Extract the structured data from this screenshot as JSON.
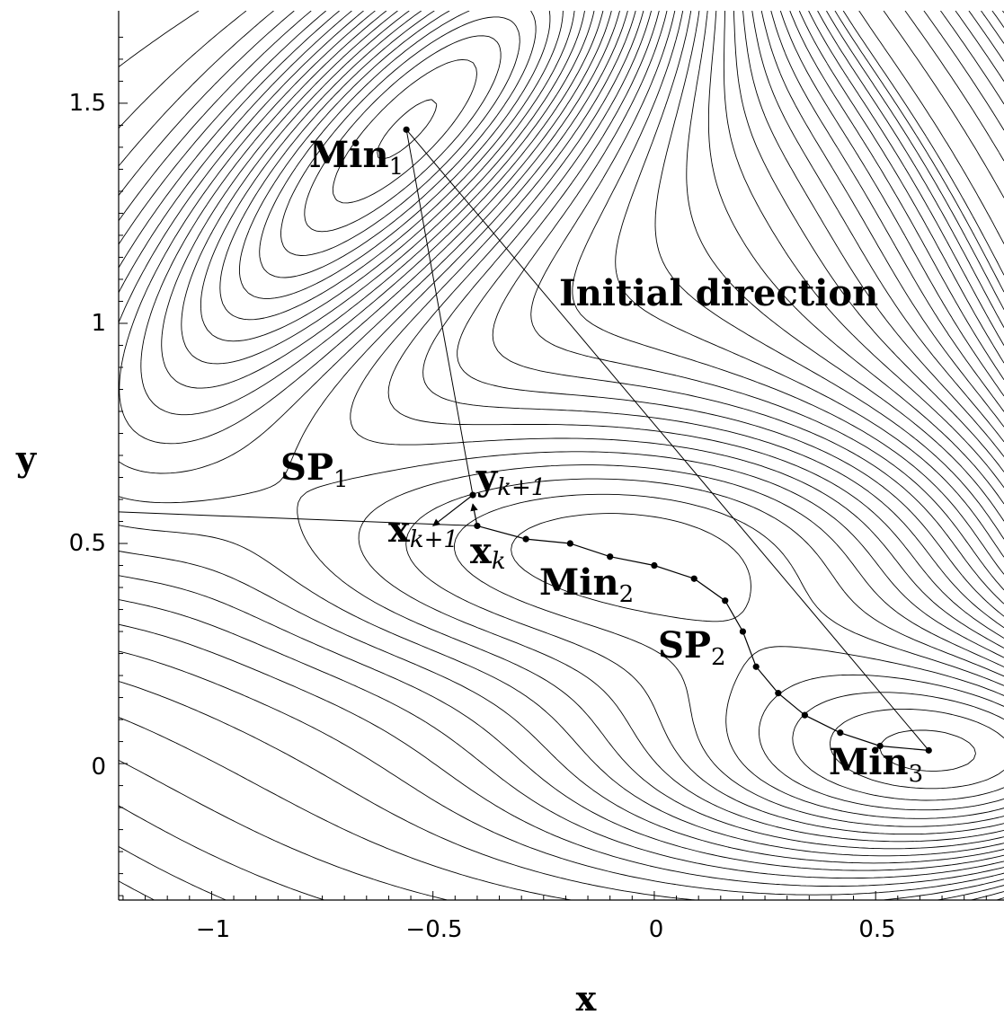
{
  "chart_data": {
    "type": "contour",
    "title": "",
    "xlabel": "x",
    "ylabel": "y",
    "xlim": [
      -1.21,
      0.79
    ],
    "ylim": [
      -0.31,
      1.71
    ],
    "x_ticks": [
      -1,
      -0.5,
      0,
      0.5
    ],
    "x_tick_labels": [
      "−1",
      "−0.5",
      "0",
      "0.5"
    ],
    "y_ticks": [
      0,
      0.5,
      1,
      1.5
    ],
    "y_tick_labels": [
      "0",
      "0.5",
      "1",
      "1.5"
    ],
    "grid": false,
    "minima": [
      {
        "x": -0.56,
        "y": 1.44,
        "label": "Min",
        "sub": "1"
      },
      {
        "x": -0.05,
        "y": 0.47,
        "label": "Min",
        "sub": "2"
      },
      {
        "x": 0.62,
        "y": 0.03,
        "label": "Min",
        "sub": "3"
      }
    ],
    "saddle_points": [
      {
        "x": -0.82,
        "y": 0.62,
        "label": "SP",
        "sub": "1"
      },
      {
        "x": 0.21,
        "y": 0.29,
        "label": "SP",
        "sub": "2"
      }
    ],
    "string_points": {
      "x": [
        -0.4,
        -0.29,
        -0.19,
        -0.1,
        0.0,
        0.09,
        0.16,
        0.2,
        0.23,
        0.28,
        0.34,
        0.42,
        0.51,
        0.62
      ],
      "y": [
        0.54,
        0.51,
        0.5,
        0.47,
        0.45,
        0.42,
        0.37,
        0.3,
        0.22,
        0.16,
        0.11,
        0.07,
        0.04,
        0.03
      ]
    },
    "initial_direction": [
      [
        -0.56,
        1.44
      ],
      [
        0.62,
        0.03
      ]
    ],
    "y_k1_point": {
      "x": -0.41,
      "y": 0.61
    },
    "x_k1_arrow_tip": {
      "x": -0.5,
      "y": 0.54
    },
    "annotations": {
      "initial_direction": "Initial direction",
      "y_k1": {
        "main": "y",
        "sub": "k+1"
      },
      "x_k1": {
        "main": "x",
        "sub": "k+1"
      },
      "x_k": {
        "main": "x",
        "sub": "k"
      }
    }
  }
}
